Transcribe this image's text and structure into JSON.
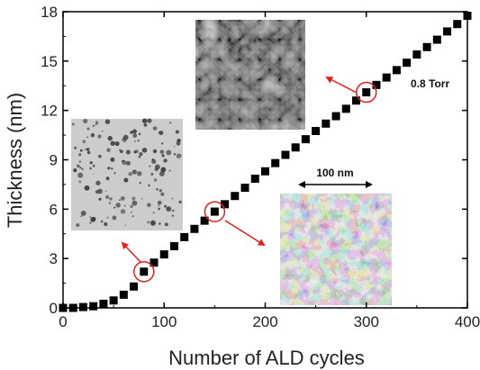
{
  "chart_data": {
    "type": "scatter",
    "xlabel": "Number of ALD cycles",
    "ylabel": "Thickness (nm)",
    "xlim": [
      0,
      400
    ],
    "ylim": [
      0,
      18
    ],
    "x_ticks": [
      0,
      100,
      200,
      300,
      400
    ],
    "y_ticks": [
      0,
      3,
      6,
      9,
      12,
      15,
      18
    ],
    "grid": false,
    "series": [
      {
        "marker": "square",
        "color": "#000000",
        "points": [
          [
            0,
            0.0
          ],
          [
            10,
            0.0
          ],
          [
            20,
            0.05
          ],
          [
            30,
            0.1
          ],
          [
            40,
            0.25
          ],
          [
            50,
            0.45
          ],
          [
            60,
            0.8
          ],
          [
            70,
            1.3
          ],
          [
            80,
            2.2
          ],
          [
            90,
            2.75
          ],
          [
            100,
            3.25
          ],
          [
            110,
            3.75
          ],
          [
            120,
            4.3
          ],
          [
            130,
            4.8
          ],
          [
            140,
            5.3
          ],
          [
            150,
            5.85
          ],
          [
            160,
            6.3
          ],
          [
            170,
            6.8
          ],
          [
            180,
            7.3
          ],
          [
            190,
            7.85
          ],
          [
            200,
            8.3
          ],
          [
            210,
            8.8
          ],
          [
            220,
            9.3
          ],
          [
            230,
            9.75
          ],
          [
            240,
            10.25
          ],
          [
            250,
            10.75
          ],
          [
            260,
            11.2
          ],
          [
            270,
            11.65
          ],
          [
            280,
            12.1
          ],
          [
            290,
            12.6
          ],
          [
            300,
            13.1
          ],
          [
            310,
            13.55
          ],
          [
            320,
            14.0
          ],
          [
            330,
            14.45
          ],
          [
            340,
            14.9
          ],
          [
            350,
            15.4
          ],
          [
            360,
            15.85
          ],
          [
            370,
            16.3
          ],
          [
            380,
            16.8
          ],
          [
            390,
            17.25
          ],
          [
            400,
            17.75
          ]
        ]
      }
    ],
    "annotations": {
      "condition_label": "0.8 Torr",
      "scale_bar_label": "100 nm",
      "highlighted_points": [
        [
          80,
          2.2
        ],
        [
          150,
          5.85
        ],
        [
          300,
          13.1
        ]
      ],
      "highlight_color": "#e02020"
    }
  },
  "insets": [
    {
      "name": "inset-tem-80-cycles",
      "style": "sparse-islands"
    },
    {
      "name": "inset-tem-300-cycles",
      "style": "grains"
    },
    {
      "name": "inset-tem-150-cycles",
      "style": "network"
    }
  ]
}
